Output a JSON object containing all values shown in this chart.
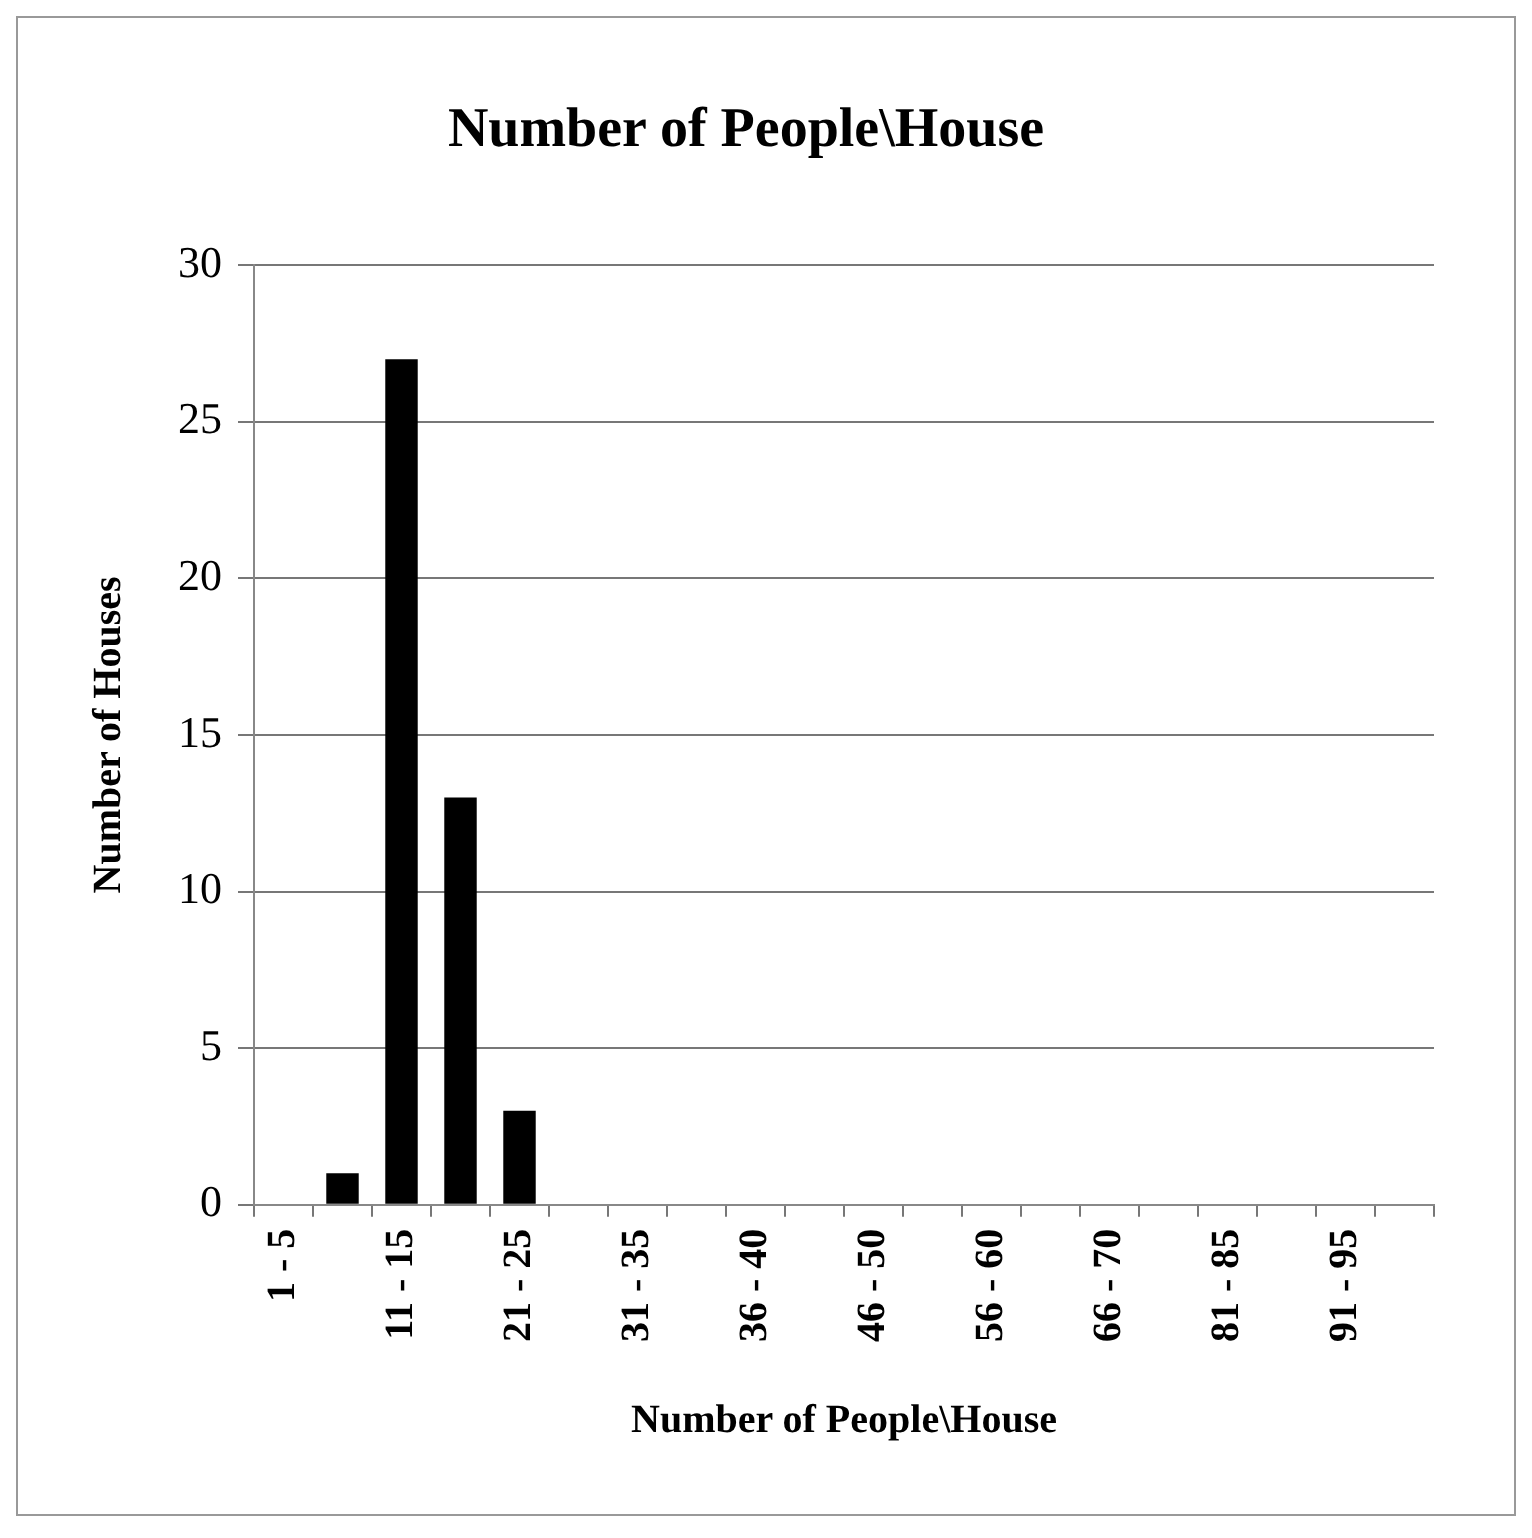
{
  "chart_data": {
    "type": "bar",
    "title": "Number of People\\House",
    "xlabel": "Number of People\\House",
    "ylabel": "Number of Houses",
    "categories": [
      "1 - 5",
      null,
      "11 - 15",
      null,
      "21 - 25",
      null,
      "31 - 35",
      null,
      "36 - 40",
      null,
      "46 - 50",
      null,
      "56 - 60",
      null,
      "66 - 70",
      null,
      "81 - 85",
      null,
      "91 - 95",
      null
    ],
    "values": [
      0,
      1,
      27,
      13,
      3,
      0,
      0,
      0,
      0,
      0,
      0,
      0,
      0,
      0,
      0,
      0,
      0,
      0,
      0,
      0
    ],
    "color": "#000000",
    "ylim": [
      0,
      30
    ],
    "yticks": [
      0,
      5,
      10,
      15,
      20,
      25,
      30
    ],
    "grid": "y",
    "legend": false
  }
}
